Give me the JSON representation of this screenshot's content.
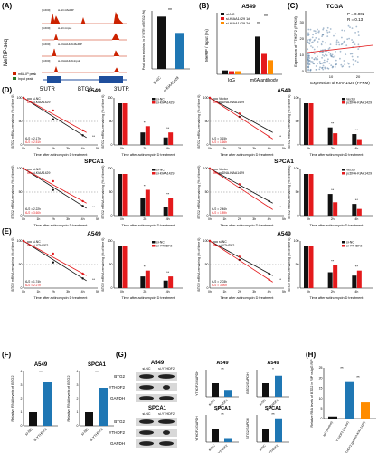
{
  "panel_letters": [
    "(A)",
    "(B)",
    "(C)",
    "(D)",
    "(E)",
    "(F)",
    "(G)",
    "(H)"
  ],
  "colors": {
    "control": "#111111",
    "treatment": "#e41a1c",
    "orange": "#ff8c00",
    "blue": "#1f77b4",
    "track": "#cc2200",
    "gene": "#1f4e9c",
    "scatter": "#6e8fb0"
  },
  "panel_a": {
    "ylabel": "MeRIP-seq",
    "tracks": [
      {
        "name": "si-NC-MeRIP",
        "range": "[0-600]"
      },
      {
        "name": "si-NC-Input",
        "range": "[0-600]"
      },
      {
        "name": "si-KIAA1429-MeRIP",
        "range": "[0-600]"
      },
      {
        "name": "si-KIAA1429-Input",
        "range": "[0-600]"
      }
    ],
    "legend": [
      "m6A-IP peak",
      "Input peak"
    ],
    "gene_labels": {
      "utr5": "5'UTR",
      "gene": "BTG2",
      "utr3": "3'UTR"
    },
    "bar": {
      "ylabel": "Peak area enriched in 3' UTR of BTG2 (%)",
      "categories": [
        "si-NC",
        "si-KIAA1429"
      ],
      "values": [
        93,
        64
      ],
      "sig": "**"
    }
  },
  "panel_b": {
    "title": "A549",
    "ylabel": "MeRIP / Input (%)",
    "legend": [
      "si-NC",
      "si-KIAA1429 1#",
      "si-KIAA1429 2#"
    ],
    "groups": [
      "IgG",
      "m6A antibody"
    ],
    "values": [
      [
        0.5,
        0.4,
        0.4
      ],
      [
        4.8,
        2.6,
        1.8
      ]
    ],
    "sigs": [
      "**",
      "**"
    ]
  },
  "panel_c": {
    "title": "TCGA",
    "xlabel": "Expression of KIAA1429 (FPKM)",
    "ylabel": "Expression of YTHDF2 (FPKM)",
    "stats": [
      "P = 0.002",
      "R = 0.13"
    ],
    "xticks": [
      "10",
      "20"
    ],
    "yticks": [
      "0",
      "10",
      "20",
      "30"
    ]
  },
  "decay_common": {
    "ylabel": "BTG2 mRNA remaining (% of time 0)",
    "xlabel": "Time after actinomycin D treatment",
    "xticks": [
      "0h",
      "1h",
      "2h",
      "3h",
      "4h",
      "5h"
    ],
    "bar_xticks": [
      "0h",
      "2h",
      "4h"
    ],
    "yticks": [
      "0",
      "50",
      "100"
    ]
  },
  "rows": [
    {
      "id": "D",
      "cell": "A549",
      "left_legend": [
        "si-NC",
        "si-KIAA1429"
      ],
      "right_legend": [
        "Vector",
        "pcDNA-KIAA1429"
      ],
      "left_half": [
        "t1/2 = 2.17h",
        "t1/2 = 2.51h"
      ],
      "right_half": [
        "t1/2 = 3.15h",
        "t1/2 = 1.66h"
      ],
      "left_bars": [
        [
          100,
          30,
          18
        ],
        [
          100,
          45,
          30
        ]
      ],
      "right_bars": [
        [
          100,
          42,
          26
        ],
        [
          100,
          28,
          14
        ]
      ]
    },
    {
      "id": "D2",
      "cell": "SPCA1",
      "left_legend": [
        "si-NC",
        "si-KIAA1429"
      ],
      "right_legend": [
        "Vector",
        "pcDNA-KIAA1429"
      ],
      "left_half": [
        "t1/2 = 2.22h",
        "t1/2 = 3.60h"
      ],
      "right_half": [
        "t1/2 = 2.46h",
        "t1/2 = 1.89h"
      ],
      "left_bars": [
        [
          100,
          42,
          20
        ],
        [
          100,
          62,
          42
        ]
      ],
      "right_bars": [
        [
          100,
          52,
          28
        ],
        [
          100,
          32,
          16
        ]
      ]
    },
    {
      "id": "E",
      "cell": "A549",
      "left_legend": [
        "si-NC",
        "si-YTHDF2"
      ],
      "right_legend": [
        "si-NC",
        "si-YTHDF2"
      ],
      "left_half": [
        "t1/2 = 1.74h",
        "t1/2 = 2.27h"
      ],
      "right_half": [
        "t1/2 = 2.03h",
        "t1/2 = 3.90h"
      ],
      "left_bars": [
        [
          100,
          28,
          18
        ],
        [
          100,
          42,
          28
        ]
      ],
      "right_bars": [
        [
          100,
          38,
          30
        ],
        [
          100,
          55,
          42
        ]
      ]
    }
  ],
  "panel_f": {
    "ylabel": "Relative RNA levels of BTG2",
    "plots": [
      {
        "title": "A549",
        "categories": [
          "si-NC",
          "si-YTHDF2"
        ],
        "values": [
          1.0,
          3.2
        ],
        "sig": "**",
        "yticks": [
          "0",
          "1",
          "2",
          "3",
          "4"
        ]
      },
      {
        "title": "SPCA1",
        "categories": [
          "si-NC",
          "si-YTHDF2"
        ],
        "values": [
          1.0,
          2.8
        ],
        "sig": "**",
        "yticks": [
          "0",
          "1",
          "2",
          "3",
          "4"
        ]
      }
    ]
  },
  "panel_g": {
    "blots": [
      {
        "title": "A549",
        "col_labels": [
          "si-NC",
          "si-YTHDF2"
        ],
        "rows": [
          "BTG2",
          "YTHDF2",
          "GAPDH"
        ]
      },
      {
        "title": "SPCA1",
        "col_labels": [
          "si-NC",
          "si-YTHDF2"
        ],
        "rows": [
          "BTG2",
          "YTHDF2",
          "GAPDH"
        ]
      }
    ],
    "quant": [
      {
        "title": "A549",
        "ylabel": "YTHDF2/GAPDH",
        "values": [
          1.0,
          0.45
        ],
        "sig": "**"
      },
      {
        "title": "A549",
        "ylabel": "BTG2/GAPDH",
        "values": [
          1.0,
          1.55
        ],
        "sig": "*"
      },
      {
        "title": "SPCA1",
        "ylabel": "YTHDF2/GAPDH",
        "values": [
          1.0,
          0.3
        ],
        "sig": "**"
      },
      {
        "title": "SPCA1",
        "ylabel": "BTG2/GAPDH",
        "values": [
          1.0,
          1.75
        ],
        "sig": "**"
      }
    ],
    "categories": [
      "si-NC",
      "si-YTHDF2"
    ]
  },
  "panel_h": {
    "ylabel": "Relative RNA levels of BTG2 in RIP vs IgG RIP",
    "categories": [
      "IgG (control)",
      "YTHDF2 (Vector)",
      "YTHDF2 (pcDNA-KIAA1429)"
    ],
    "values": [
      1.0,
      18.0,
      8.0
    ],
    "sigs": [
      "**",
      "**"
    ],
    "yticks": [
      "0",
      "5",
      "10",
      "15",
      "20",
      "25"
    ]
  }
}
